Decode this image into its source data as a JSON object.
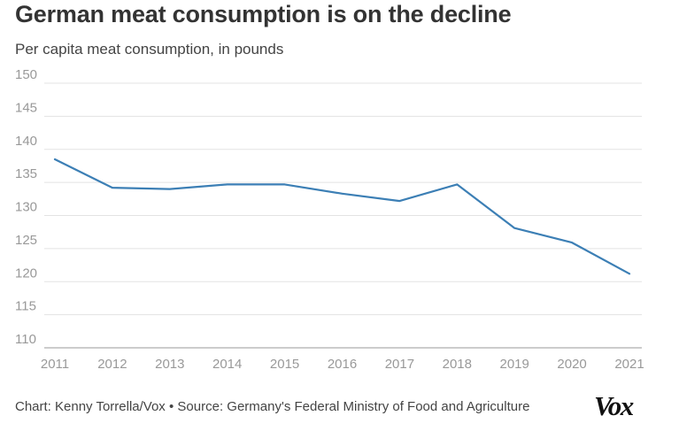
{
  "title": "German meat consumption is on the decline",
  "subtitle": "Per capita meat consumption, in pounds",
  "footer": {
    "credit": "Chart: Kenny Torrella/Vox",
    "separator": "•",
    "source": "Source: Germany's Federal Ministry of Food and Agriculture"
  },
  "brand": {
    "logo_text": "Vox"
  },
  "colors": {
    "line": "#3c7fb5",
    "grid": "#e3e3e3",
    "axis_text": "#999999",
    "title": "#333333"
  },
  "chart_data": {
    "type": "line",
    "title": "German meat consumption is on the decline",
    "subtitle": "Per capita meat consumption, in pounds",
    "xlabel": "",
    "ylabel": "",
    "x": [
      "2011",
      "2012",
      "2013",
      "2014",
      "2015",
      "2016",
      "2017",
      "2018",
      "2019",
      "2020",
      "2021"
    ],
    "series": [
      {
        "values": [
          138.5,
          134.2,
          134.0,
          134.7,
          134.7,
          133.3,
          132.2,
          134.7,
          128.1,
          125.9,
          121.2
        ]
      }
    ],
    "ylim": [
      110,
      150
    ],
    "yticks": [
      110,
      115,
      120,
      125,
      130,
      135,
      140,
      145,
      150
    ],
    "grid": true,
    "legend": "none"
  }
}
